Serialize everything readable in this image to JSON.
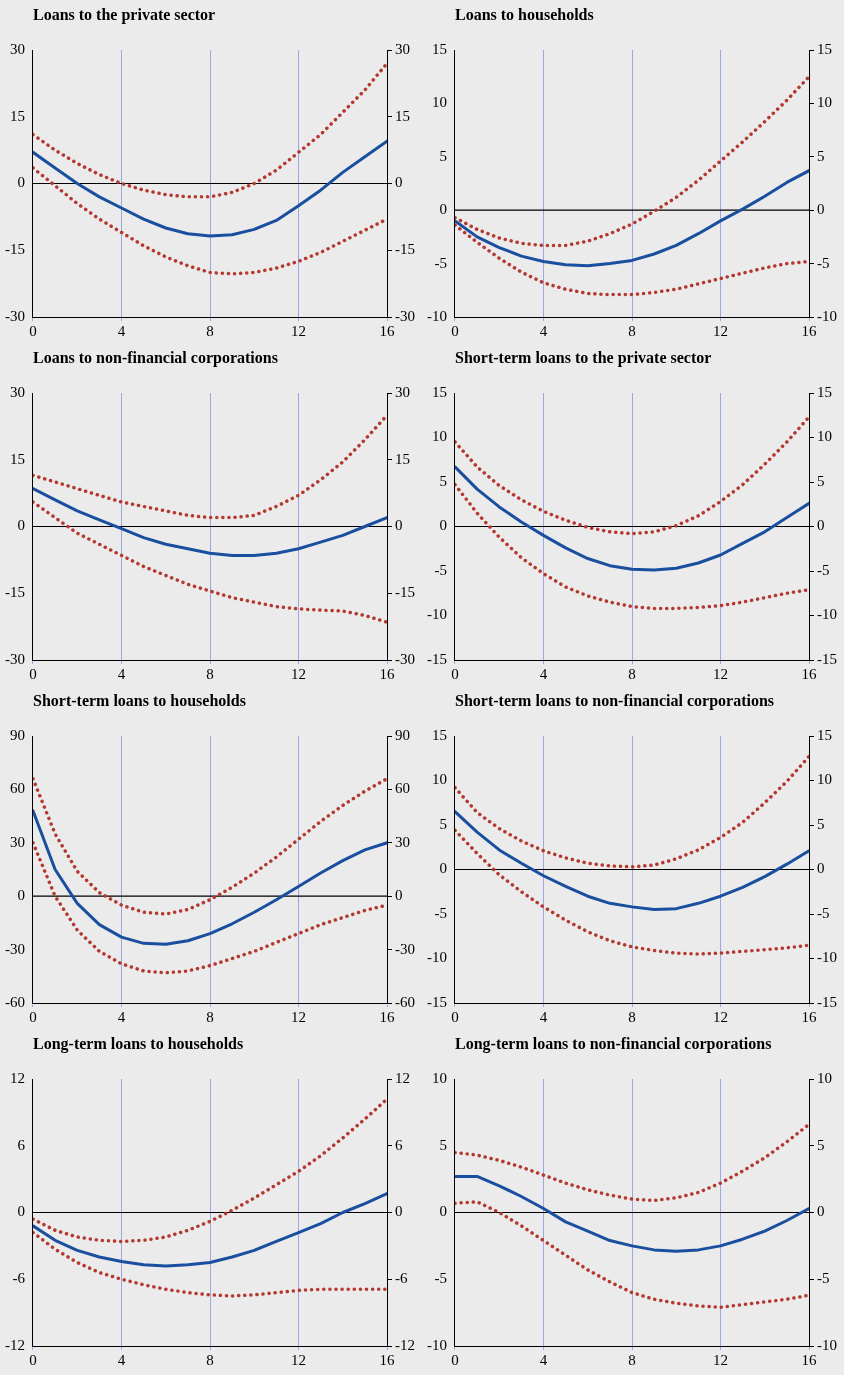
{
  "chart_data": [
    {
      "type": "line",
      "title": "Loans to the private sector",
      "x": [
        0,
        1,
        2,
        3,
        4,
        5,
        6,
        7,
        8,
        9,
        10,
        11,
        12,
        13,
        14,
        15,
        16
      ],
      "xlim": [
        0,
        16
      ],
      "xticks": [
        0,
        4,
        8,
        12,
        16
      ],
      "ylim": [
        -30,
        30
      ],
      "yticks": [
        -30,
        -15,
        0,
        15,
        30
      ],
      "y2lim": [
        -30,
        30
      ],
      "y2ticks": [
        -30,
        -15,
        0,
        15,
        30
      ],
      "grid": "x",
      "legend": false,
      "ref_lines": [
        {
          "axis": "y",
          "value": 0,
          "color": "#000000"
        }
      ],
      "series": [
        {
          "color": "#1a4f9f",
          "line_style": "solid",
          "values": [
            7,
            3.5,
            0,
            -3,
            -5.5,
            -8,
            -10,
            -11.3,
            -11.8,
            -11.5,
            -10.3,
            -8.3,
            -5,
            -1.5,
            2.5,
            6,
            9.5
          ]
        },
        {
          "color": "#b5382f",
          "line_style": "dotted",
          "values": [
            11,
            7.5,
            4.5,
            2,
            0,
            -1.5,
            -2.5,
            -3,
            -3,
            -2,
            0,
            3,
            7,
            11,
            16,
            21,
            27
          ]
        },
        {
          "color": "#b5382f",
          "line_style": "dotted",
          "values": [
            3.5,
            -0.5,
            -4.5,
            -8,
            -11,
            -14,
            -16.5,
            -18.5,
            -20,
            -20.3,
            -20,
            -19,
            -17.5,
            -15.5,
            -13,
            -10.5,
            -8
          ]
        }
      ]
    },
    {
      "type": "line",
      "title": "Loans to households",
      "x": [
        0,
        1,
        2,
        3,
        4,
        5,
        6,
        7,
        8,
        9,
        10,
        11,
        12,
        13,
        14,
        15,
        16
      ],
      "xlim": [
        0,
        16
      ],
      "xticks": [
        0,
        4,
        8,
        12,
        16
      ],
      "ylim": [
        -10,
        15
      ],
      "yticks": [
        -10,
        -5,
        0,
        5,
        10,
        15
      ],
      "y2lim": [
        -10,
        15
      ],
      "y2ticks": [
        -10,
        -5,
        0,
        5,
        10,
        15
      ],
      "grid": "x",
      "legend": false,
      "ref_lines": [
        {
          "axis": "y",
          "value": 0,
          "color": "#000000"
        }
      ],
      "series": [
        {
          "color": "#1a4f9f",
          "line_style": "solid",
          "values": [
            -1,
            -2.5,
            -3.5,
            -4.3,
            -4.8,
            -5.1,
            -5.2,
            -5,
            -4.7,
            -4.1,
            -3.3,
            -2.2,
            -1,
            0.1,
            1.3,
            2.6,
            3.7
          ]
        },
        {
          "color": "#b5382f",
          "line_style": "dotted",
          "values": [
            -0.7,
            -1.8,
            -2.6,
            -3.1,
            -3.3,
            -3.3,
            -2.9,
            -2.2,
            -1.3,
            -0.1,
            1.2,
            2.8,
            4.6,
            6.4,
            8.3,
            10.3,
            12.5
          ]
        },
        {
          "color": "#b5382f",
          "line_style": "dotted",
          "values": [
            -1.4,
            -3,
            -4.5,
            -5.8,
            -6.8,
            -7.4,
            -7.8,
            -7.9,
            -7.9,
            -7.7,
            -7.4,
            -6.9,
            -6.4,
            -5.9,
            -5.4,
            -5,
            -4.8
          ]
        }
      ]
    },
    {
      "type": "line",
      "title": "Loans to non-financial corporations",
      "x": [
        0,
        1,
        2,
        3,
        4,
        5,
        6,
        7,
        8,
        9,
        10,
        11,
        12,
        13,
        14,
        15,
        16
      ],
      "xlim": [
        0,
        16
      ],
      "xticks": [
        0,
        4,
        8,
        12,
        16
      ],
      "ylim": [
        -30,
        30
      ],
      "yticks": [
        -30,
        -15,
        0,
        15,
        30
      ],
      "y2lim": [
        -30,
        30
      ],
      "y2ticks": [
        -30,
        -15,
        0,
        15,
        30
      ],
      "grid": "x",
      "legend": false,
      "ref_lines": [
        {
          "axis": "y",
          "value": 0,
          "color": "#000000"
        }
      ],
      "series": [
        {
          "color": "#1a4f9f",
          "line_style": "solid",
          "values": [
            8.5,
            6,
            3.5,
            1.5,
            -0.5,
            -2.5,
            -4,
            -5,
            -6,
            -6.5,
            -6.5,
            -6,
            -5,
            -3.5,
            -2,
            0,
            2
          ]
        },
        {
          "color": "#b5382f",
          "line_style": "dotted",
          "values": [
            11.5,
            10,
            8.5,
            7,
            5.5,
            4.5,
            3.5,
            2.5,
            2,
            2,
            2.5,
            4.5,
            7,
            10.5,
            14.5,
            19.5,
            25
          ]
        },
        {
          "color": "#b5382f",
          "line_style": "dotted",
          "values": [
            5.5,
            2,
            -1.5,
            -4,
            -6.5,
            -9,
            -11,
            -13,
            -14.5,
            -16,
            -17,
            -18,
            -18.5,
            -18.8,
            -19,
            -20,
            -21.5
          ]
        }
      ]
    },
    {
      "type": "line",
      "title": "Short-term loans to the private sector",
      "x": [
        0,
        1,
        2,
        3,
        4,
        5,
        6,
        7,
        8,
        9,
        10,
        11,
        12,
        13,
        14,
        15,
        16
      ],
      "xlim": [
        0,
        16
      ],
      "xticks": [
        0,
        4,
        8,
        12,
        16
      ],
      "ylim": [
        -15,
        15
      ],
      "yticks": [
        -15,
        -10,
        -5,
        0,
        5,
        10,
        15
      ],
      "y2lim": [
        -15,
        15
      ],
      "y2ticks": [
        -15,
        -10,
        -5,
        0,
        5,
        10,
        15
      ],
      "grid": "x",
      "legend": false,
      "ref_lines": [
        {
          "axis": "y",
          "value": 0,
          "color": "#000000"
        }
      ],
      "series": [
        {
          "color": "#1a4f9f",
          "line_style": "solid",
          "values": [
            6.7,
            4.2,
            2.2,
            0.5,
            -1,
            -2.4,
            -3.6,
            -4.4,
            -4.8,
            -4.9,
            -4.7,
            -4.1,
            -3.2,
            -1.9,
            -0.6,
            1,
            2.6
          ]
        },
        {
          "color": "#b5382f",
          "line_style": "dotted",
          "values": [
            9.5,
            6.7,
            4.6,
            3,
            1.7,
            0.7,
            -0.1,
            -0.6,
            -0.8,
            -0.6,
            0.1,
            1.2,
            2.8,
            4.7,
            7,
            9.5,
            12.3
          ]
        },
        {
          "color": "#b5382f",
          "line_style": "dotted",
          "values": [
            4.7,
            1.5,
            -1.2,
            -3.5,
            -5.3,
            -6.8,
            -7.8,
            -8.5,
            -9,
            -9.2,
            -9.2,
            -9.1,
            -8.9,
            -8.5,
            -8,
            -7.5,
            -7.1
          ]
        }
      ]
    },
    {
      "type": "line",
      "title": "Short-term loans to households",
      "x": [
        0,
        1,
        2,
        3,
        4,
        5,
        6,
        7,
        8,
        9,
        10,
        11,
        12,
        13,
        14,
        15,
        16
      ],
      "xlim": [
        0,
        16
      ],
      "xticks": [
        0,
        4,
        8,
        12,
        16
      ],
      "ylim": [
        -60,
        90
      ],
      "yticks": [
        -60,
        -30,
        0,
        30,
        60,
        90
      ],
      "y2lim": [
        -60,
        90
      ],
      "y2ticks": [
        -60,
        -30,
        0,
        30,
        60,
        90
      ],
      "grid": "x",
      "legend": false,
      "ref_lines": [
        {
          "axis": "y",
          "value": 0,
          "color": "#000000"
        }
      ],
      "series": [
        {
          "color": "#1a4f9f",
          "line_style": "solid",
          "values": [
            48,
            15,
            -4,
            -16,
            -23,
            -26.5,
            -27,
            -25,
            -21,
            -15.5,
            -9,
            -2,
            5.5,
            13,
            20,
            26,
            30
          ]
        },
        {
          "color": "#b5382f",
          "line_style": "dotted",
          "values": [
            66,
            35,
            14,
            2,
            -5,
            -9,
            -10,
            -7.5,
            -2,
            5,
            13,
            22,
            32,
            42,
            51,
            59,
            66
          ]
        },
        {
          "color": "#b5382f",
          "line_style": "dotted",
          "values": [
            30,
            0,
            -19,
            -31,
            -38,
            -42,
            -43,
            -42,
            -39,
            -35,
            -31,
            -26,
            -21,
            -16,
            -12,
            -8,
            -5
          ]
        }
      ]
    },
    {
      "type": "line",
      "title": "Short-term loans to non-financial corporations",
      "x": [
        0,
        1,
        2,
        3,
        4,
        5,
        6,
        7,
        8,
        9,
        10,
        11,
        12,
        13,
        14,
        15,
        16
      ],
      "xlim": [
        0,
        16
      ],
      "xticks": [
        0,
        4,
        8,
        12,
        16
      ],
      "ylim": [
        -15,
        15
      ],
      "yticks": [
        -15,
        -10,
        -5,
        0,
        5,
        10,
        15
      ],
      "y2lim": [
        -15,
        15
      ],
      "y2ticks": [
        -15,
        -10,
        -5,
        0,
        5,
        10,
        15
      ],
      "grid": "x",
      "legend": false,
      "ref_lines": [
        {
          "axis": "y",
          "value": 0,
          "color": "#000000"
        }
      ],
      "series": [
        {
          "color": "#1a4f9f",
          "line_style": "solid",
          "values": [
            6.5,
            4.2,
            2.2,
            0.7,
            -0.7,
            -1.9,
            -3,
            -3.8,
            -4.2,
            -4.5,
            -4.4,
            -3.8,
            -3,
            -2,
            -0.8,
            0.6,
            2.1
          ]
        },
        {
          "color": "#b5382f",
          "line_style": "dotted",
          "values": [
            9.2,
            6.4,
            4.6,
            3.2,
            2.1,
            1.3,
            0.7,
            0.4,
            0.3,
            0.5,
            1.2,
            2.2,
            3.6,
            5.3,
            7.5,
            9.9,
            12.7
          ]
        },
        {
          "color": "#b5382f",
          "line_style": "dotted",
          "values": [
            4.4,
            1.8,
            -0.6,
            -2.5,
            -4.2,
            -5.7,
            -7,
            -8,
            -8.7,
            -9.1,
            -9.4,
            -9.5,
            -9.4,
            -9.2,
            -9,
            -8.8,
            -8.5
          ]
        }
      ]
    },
    {
      "type": "line",
      "title": "Long-term loans to households",
      "x": [
        0,
        1,
        2,
        3,
        4,
        5,
        6,
        7,
        8,
        9,
        10,
        11,
        12,
        13,
        14,
        15,
        16
      ],
      "xlim": [
        0,
        16
      ],
      "xticks": [
        0,
        4,
        8,
        12,
        16
      ],
      "ylim": [
        -12,
        12
      ],
      "yticks": [
        -12,
        -6,
        0,
        6,
        12
      ],
      "y2lim": [
        -12,
        12
      ],
      "y2ticks": [
        -12,
        -6,
        0,
        6,
        12
      ],
      "grid": "x",
      "legend": false,
      "ref_lines": [
        {
          "axis": "y",
          "value": 0,
          "color": "#000000"
        }
      ],
      "series": [
        {
          "color": "#1a4f9f",
          "line_style": "solid",
          "values": [
            -1.2,
            -2.5,
            -3.4,
            -4,
            -4.4,
            -4.7,
            -4.8,
            -4.7,
            -4.5,
            -4,
            -3.4,
            -2.6,
            -1.8,
            -1,
            0,
            0.8,
            1.7
          ]
        },
        {
          "color": "#b5382f",
          "line_style": "dotted",
          "values": [
            -0.6,
            -1.6,
            -2.2,
            -2.5,
            -2.6,
            -2.5,
            -2.2,
            -1.6,
            -0.8,
            0.2,
            1.3,
            2.5,
            3.7,
            5.1,
            6.7,
            8.4,
            10.2
          ]
        },
        {
          "color": "#b5382f",
          "line_style": "dotted",
          "values": [
            -1.8,
            -3.3,
            -4.5,
            -5.4,
            -6,
            -6.5,
            -6.9,
            -7.2,
            -7.4,
            -7.5,
            -7.4,
            -7.2,
            -7,
            -6.9,
            -6.9,
            -6.9,
            -6.9
          ]
        }
      ]
    },
    {
      "type": "line",
      "title": "Long-term loans to non-financial corporations",
      "x": [
        0,
        1,
        2,
        3,
        4,
        5,
        6,
        7,
        8,
        9,
        10,
        11,
        12,
        13,
        14,
        15,
        16
      ],
      "xlim": [
        0,
        16
      ],
      "xticks": [
        0,
        4,
        8,
        12,
        16
      ],
      "ylim": [
        -10,
        10
      ],
      "yticks": [
        -10,
        -5,
        0,
        5,
        10
      ],
      "y2lim": [
        -10,
        10
      ],
      "y2ticks": [
        -10,
        -5,
        0,
        5,
        10
      ],
      "grid": "x",
      "legend": false,
      "ref_lines": [
        {
          "axis": "y",
          "value": 0,
          "color": "#000000"
        }
      ],
      "series": [
        {
          "color": "#1a4f9f",
          "line_style": "solid",
          "values": [
            2.7,
            2.7,
            2,
            1.2,
            0.3,
            -0.7,
            -1.4,
            -2.1,
            -2.5,
            -2.8,
            -2.9,
            -2.8,
            -2.5,
            -2,
            -1.4,
            -0.6,
            0.3
          ]
        },
        {
          "color": "#b5382f",
          "line_style": "dotted",
          "values": [
            4.5,
            4.3,
            3.9,
            3.4,
            2.8,
            2.2,
            1.7,
            1.3,
            1,
            0.9,
            1.1,
            1.5,
            2.2,
            3.1,
            4.1,
            5.3,
            6.6
          ]
        },
        {
          "color": "#b5382f",
          "line_style": "dotted",
          "values": [
            0.7,
            0.8,
            0,
            -1,
            -2.1,
            -3.2,
            -4.3,
            -5.2,
            -6,
            -6.5,
            -6.8,
            -7,
            -7.1,
            -6.9,
            -6.7,
            -6.5,
            -6.2
          ]
        }
      ]
    }
  ]
}
